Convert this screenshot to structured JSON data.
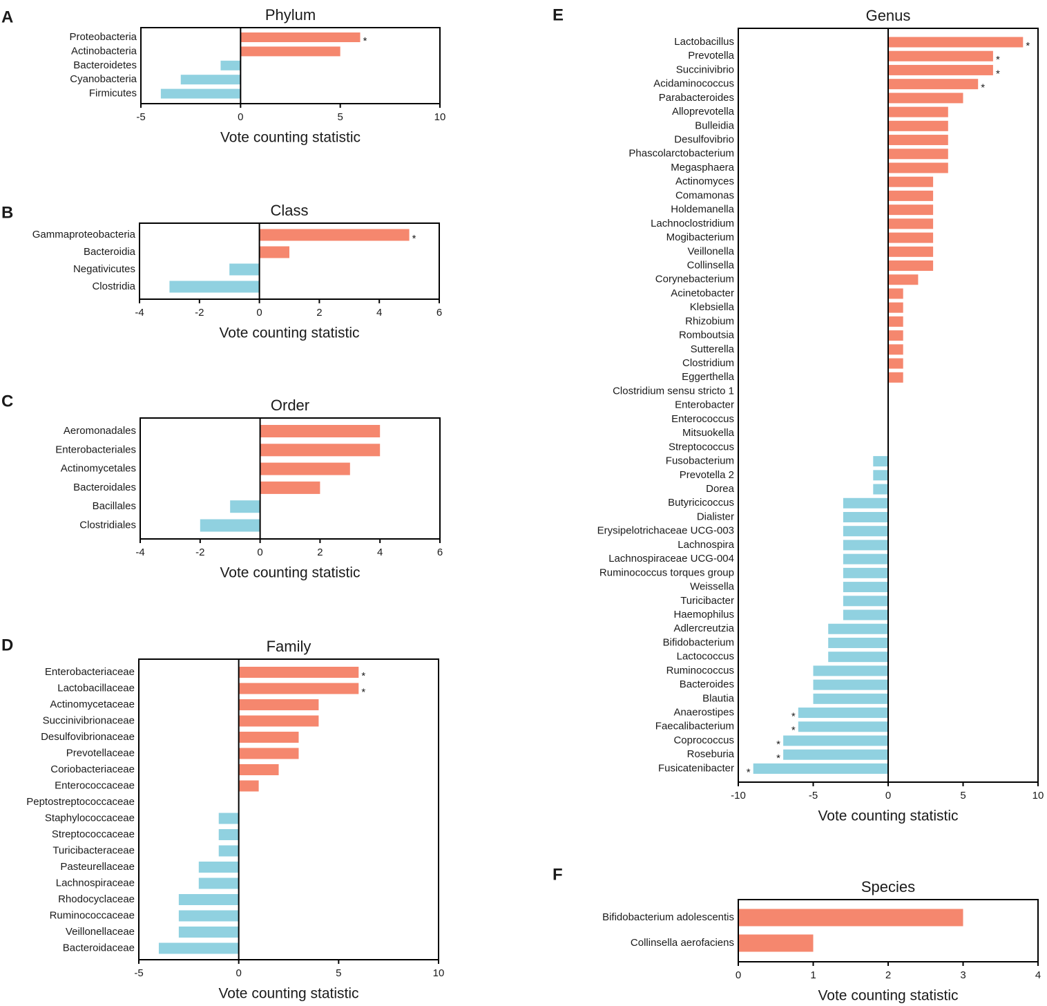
{
  "colors": {
    "positive": "#f5876e",
    "negative": "#90d1e0",
    "axis": "#000000"
  },
  "chart_data": [
    {
      "letter": "A",
      "type": "bar",
      "orientation": "horizontal",
      "title": "Phylum",
      "xlabel": "Vote counting statistic",
      "xlim": [
        -5,
        10
      ],
      "xticks": [
        -5,
        0,
        5,
        10
      ],
      "categories": [
        "Proteobacteria",
        "Actinobacteria",
        "Bacteroidetes",
        "Cyanobacteria",
        "Firmicutes"
      ],
      "values": [
        6,
        5,
        -1,
        -3,
        -4
      ],
      "significant": [
        true,
        false,
        false,
        false,
        false
      ],
      "tick_text": [
        "-5",
        "0",
        "5",
        "10"
      ],
      "star": "*"
    },
    {
      "letter": "B",
      "type": "bar",
      "orientation": "horizontal",
      "title": "Class",
      "xlabel": "Vote counting statistic",
      "xlim": [
        -4,
        6
      ],
      "xticks": [
        -4,
        -2,
        0,
        2,
        4,
        6
      ],
      "categories": [
        "Gammaproteobacteria",
        "Bacteroidia",
        "Negativicutes",
        "Clostridia"
      ],
      "values": [
        5,
        1,
        -1,
        -3
      ],
      "significant": [
        true,
        false,
        false,
        false
      ],
      "tick_text": [
        "-4",
        "-2",
        "0",
        "2",
        "4",
        "6"
      ],
      "star": "*"
    },
    {
      "letter": "C",
      "type": "bar",
      "orientation": "horizontal",
      "title": "Order",
      "xlabel": "Vote counting statistic",
      "xlim": [
        -4,
        6
      ],
      "xticks": [
        -4,
        -2,
        0,
        2,
        4,
        6
      ],
      "categories": [
        "Aeromonadales",
        "Enterobacteriales",
        "Actinomycetales",
        "Bacteroidales",
        "Bacillales",
        "Clostridiales"
      ],
      "values": [
        4,
        4,
        3,
        2,
        -1,
        -2
      ],
      "significant": [
        false,
        false,
        false,
        false,
        false,
        false
      ],
      "tick_text": [
        "-4",
        "-2",
        "0",
        "2",
        "4",
        "6"
      ],
      "star": "*"
    },
    {
      "letter": "D",
      "type": "bar",
      "orientation": "horizontal",
      "title": "Family",
      "xlabel": "Vote counting statistic",
      "xlim": [
        -5,
        10
      ],
      "xticks": [
        -5,
        0,
        5,
        10
      ],
      "categories": [
        "Enterobacteriaceae",
        "Lactobacillaceae",
        "Actinomycetaceae",
        "Succinivibrionaceae",
        "Desulfovibrionaceae",
        "Prevotellaceae",
        "Coriobacteriaceae",
        "Enterococcaceae",
        "Peptostreptococcaceae",
        "Staphylococcaceae",
        "Streptococcaceae",
        "Turicibacteraceae",
        "Pasteurellaceae",
        "Lachnospiraceae",
        "Rhodocyclaceae",
        "Ruminococcaceae",
        "Veillonellaceae",
        "Bacteroidaceae"
      ],
      "values": [
        6,
        6,
        4,
        4,
        3,
        3,
        2,
        1,
        0,
        -1,
        -1,
        -1,
        -2,
        -2,
        -3,
        -3,
        -3,
        -4
      ],
      "significant": [
        true,
        true,
        false,
        false,
        false,
        false,
        false,
        false,
        false,
        false,
        false,
        false,
        false,
        false,
        false,
        false,
        false,
        false
      ],
      "tick_text": [
        "-5",
        "0",
        "5",
        "10"
      ],
      "star": "*"
    },
    {
      "letter": "E",
      "type": "bar",
      "orientation": "horizontal",
      "title": "Genus",
      "xlabel": "Vote counting statistic",
      "xlim": [
        -10,
        10
      ],
      "xticks": [
        -10,
        -5,
        0,
        5,
        10
      ],
      "categories": [
        "Lactobacillus",
        "Prevotella",
        "Succinivibrio",
        "Acidaminococcus",
        "Parabacteroides",
        "Alloprevotella",
        "Bulleidia",
        "Desulfovibrio",
        "Phascolarctobacterium",
        "Megasphaera",
        "Actinomyces",
        "Comamonas",
        "Holdemanella",
        "Lachnoclostridium",
        "Mogibacterium",
        "Veillonella",
        "Collinsella",
        "Corynebacterium",
        "Acinetobacter",
        "Klebsiella",
        "Rhizobium",
        "Romboutsia",
        "Sutterella",
        "Clostridium",
        "Eggerthella",
        "Clostridium sensu stricto 1",
        "Enterobacter",
        "Enterococcus",
        "Mitsuokella",
        "Streptococcus",
        "Fusobacterium",
        "Prevotella 2",
        "Dorea",
        "Butyricicoccus",
        "Dialister",
        "Erysipelotrichaceae UCG-003",
        "Lachnospira",
        "Lachnospiraceae UCG-004",
        "Ruminococcus torques group",
        "Weissella",
        "Turicibacter",
        "Haemophilus",
        "Adlercreutzia",
        "Bifidobacterium",
        "Lactococcus",
        "Ruminococcus",
        "Bacteroides",
        "Blautia",
        "Anaerostipes",
        "Faecalibacterium",
        "Coprococcus",
        "Roseburia",
        "Fusicatenibacter"
      ],
      "values": [
        9,
        7,
        7,
        6,
        5,
        4,
        4,
        4,
        4,
        4,
        3,
        3,
        3,
        3,
        3,
        3,
        3,
        2,
        1,
        1,
        1,
        1,
        1,
        1,
        1,
        0,
        0,
        0,
        0,
        0,
        -1,
        -1,
        -1,
        -3,
        -3,
        -3,
        -3,
        -3,
        -3,
        -3,
        -3,
        -3,
        -4,
        -4,
        -4,
        -5,
        -5,
        -5,
        -6,
        -6,
        -7,
        -7,
        -9
      ],
      "significant": [
        true,
        true,
        true,
        true,
        false,
        false,
        false,
        false,
        false,
        false,
        false,
        false,
        false,
        false,
        false,
        false,
        false,
        false,
        false,
        false,
        false,
        false,
        false,
        false,
        false,
        false,
        false,
        false,
        false,
        false,
        false,
        false,
        false,
        false,
        false,
        false,
        false,
        false,
        false,
        false,
        false,
        false,
        false,
        false,
        false,
        false,
        false,
        false,
        true,
        true,
        true,
        true,
        true
      ],
      "tick_text": [
        "-10",
        "-5",
        "0",
        "5",
        "10"
      ],
      "star": "*"
    },
    {
      "letter": "F",
      "type": "bar",
      "orientation": "horizontal",
      "title": "Species",
      "xlabel": "Vote counting statistic",
      "xlim": [
        0,
        4
      ],
      "xticks": [
        0,
        1,
        2,
        3,
        4
      ],
      "categories": [
        "Bifidobacterium adolescentis",
        "Collinsella aerofaciens"
      ],
      "values": [
        3,
        1
      ],
      "significant": [
        false,
        false
      ],
      "tick_text": [
        "0",
        "1",
        "2",
        "3",
        "4"
      ],
      "star": "*"
    }
  ]
}
